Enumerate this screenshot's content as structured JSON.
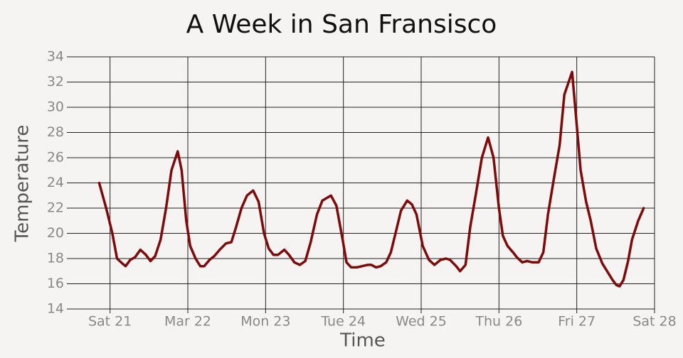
{
  "chart_data": {
    "type": "line",
    "title": "A Week in San Fransisco",
    "x_label": "Time",
    "y_label": "Temperature",
    "grid": true,
    "xlim": [
      20.5,
      28
    ],
    "ylim": [
      14,
      34
    ],
    "xticks": [
      {
        "value": 21,
        "label": "Sat 21"
      },
      {
        "value": 22,
        "label": "Mar 22"
      },
      {
        "value": 23,
        "label": "Mon 23"
      },
      {
        "value": 24,
        "label": "Tue 24"
      },
      {
        "value": 25,
        "label": "Wed 25"
      },
      {
        "value": 26,
        "label": "Thu 26"
      },
      {
        "value": 27,
        "label": "Fri 27"
      },
      {
        "value": 28,
        "label": "Sat 28"
      }
    ],
    "yticks": [
      14,
      16,
      18,
      20,
      22,
      24,
      26,
      28,
      30,
      32,
      34
    ],
    "series": [
      {
        "name": "Temperature",
        "color": "#7f0a0a",
        "x": [
          20.86,
          20.95,
          21.03,
          21.09,
          21.16,
          21.2,
          21.26,
          21.32,
          21.39,
          21.46,
          21.52,
          21.58,
          21.65,
          21.72,
          21.79,
          21.87,
          21.92,
          21.98,
          22.03,
          22.1,
          22.16,
          22.21,
          22.28,
          22.34,
          22.41,
          22.49,
          22.56,
          22.62,
          22.69,
          22.76,
          22.84,
          22.91,
          22.98,
          23.04,
          23.1,
          23.16,
          23.24,
          23.3,
          23.37,
          23.44,
          23.51,
          23.58,
          23.66,
          23.73,
          23.84,
          23.91,
          23.99,
          24.04,
          24.1,
          24.17,
          24.24,
          24.31,
          24.36,
          24.42,
          24.48,
          24.55,
          24.61,
          24.67,
          24.74,
          24.82,
          24.88,
          24.94,
          25.02,
          25.1,
          25.17,
          25.25,
          25.32,
          25.37,
          25.45,
          25.5,
          25.57,
          25.63,
          25.7,
          25.78,
          25.86,
          25.93,
          26.0,
          26.05,
          26.11,
          26.18,
          26.23,
          26.3,
          26.36,
          26.43,
          26.51,
          26.57,
          26.63,
          26.71,
          26.78,
          26.84,
          26.94,
          26.98,
          27.05,
          27.12,
          27.18,
          27.25,
          27.33,
          27.4,
          27.46,
          27.51,
          27.55,
          27.6,
          27.66,
          27.71,
          27.79,
          27.86
        ],
        "values": [
          24,
          22,
          20,
          18,
          17.6,
          17.4,
          17.9,
          18.1,
          18.7,
          18.3,
          17.8,
          18.2,
          19.5,
          22,
          25,
          26.5,
          25,
          21,
          19,
          18,
          17.4,
          17.4,
          17.9,
          18.2,
          18.7,
          19.2,
          19.3,
          20.5,
          22,
          23,
          23.4,
          22.5,
          20,
          18.8,
          18.3,
          18.3,
          18.7,
          18.3,
          17.7,
          17.5,
          17.8,
          19.3,
          21.5,
          22.6,
          23,
          22.2,
          19.5,
          17.7,
          17.3,
          17.3,
          17.4,
          17.5,
          17.5,
          17.3,
          17.4,
          17.7,
          18.5,
          20,
          21.8,
          22.6,
          22.3,
          21.5,
          19,
          17.9,
          17.5,
          17.9,
          18,
          17.9,
          17.4,
          17,
          17.5,
          20.5,
          23,
          26,
          27.6,
          26,
          22,
          19.8,
          19,
          18.5,
          18.1,
          17.7,
          17.8,
          17.7,
          17.7,
          18.5,
          21.5,
          24.5,
          27,
          31,
          32.8,
          30,
          25,
          22.5,
          21,
          18.8,
          17.6,
          16.9,
          16.3,
          15.9,
          15.8,
          16.3,
          17.8,
          19.5,
          21,
          22
        ]
      }
    ]
  }
}
